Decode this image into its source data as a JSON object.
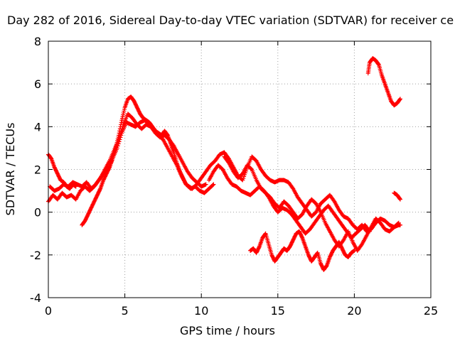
{
  "chart_data": {
    "type": "scatter",
    "title": "Day 282 of 2016, Sidereal Day-to-day VTEC variation (SDTVAR) for receiver ce",
    "xlabel": "GPS time / hours",
    "ylabel": "SDTVAR / TECUs",
    "xlim": [
      0,
      25
    ],
    "ylim": [
      -4,
      8
    ],
    "xticks": [
      "0",
      "5",
      "10",
      "15",
      "20",
      "25"
    ],
    "yticks": [
      "-4",
      "-2",
      "0",
      "2",
      "4",
      "6",
      "8"
    ],
    "grid": true,
    "legend": "none",
    "marker": "+",
    "color": "#ff0000",
    "series": [
      {
        "x": [
          0.0,
          0.2,
          0.4,
          0.6,
          0.8,
          1.0,
          1.2,
          1.4,
          1.6,
          1.8
        ],
        "y": [
          2.7,
          2.5,
          2.1,
          1.8,
          1.5,
          1.4,
          1.2,
          1.1,
          1.3,
          1.2
        ]
      },
      {
        "x": [
          0.0,
          0.3,
          0.6,
          0.9,
          1.2,
          1.5,
          1.8,
          2.1,
          2.4,
          2.7,
          3.0,
          3.3,
          3.6,
          3.9,
          4.2,
          4.5,
          4.8,
          5.1,
          5.4,
          5.7,
          6.0,
          6.3,
          6.6,
          6.9,
          7.2,
          7.5,
          7.8,
          8.1,
          8.4,
          8.7,
          9.0,
          9.3,
          9.6,
          9.9,
          10.2,
          10.5,
          10.8
        ],
        "y": [
          0.5,
          0.8,
          0.6,
          0.9,
          0.7,
          0.8,
          0.6,
          1.0,
          1.2,
          1.0,
          1.2,
          1.5,
          1.8,
          2.0,
          2.5,
          3.0,
          3.7,
          4.2,
          4.1,
          4.0,
          4.2,
          4.3,
          4.1,
          3.9,
          3.6,
          3.4,
          3.0,
          2.6,
          2.2,
          1.7,
          1.3,
          1.1,
          1.2,
          1.0,
          0.9,
          1.1,
          1.3
        ]
      },
      {
        "x": [
          0.1,
          0.4,
          0.7,
          1.0,
          1.3,
          1.6,
          1.9,
          2.2,
          2.5,
          2.8,
          3.1,
          3.4,
          3.7,
          4.0,
          4.3,
          4.6,
          4.9,
          5.2,
          5.5,
          5.8,
          6.1,
          6.4,
          6.7,
          7.0,
          7.3,
          7.6,
          7.9,
          8.2,
          8.5,
          8.8,
          9.1,
          9.4,
          9.7,
          10.0,
          10.3
        ],
        "y": [
          1.2,
          1.0,
          1.1,
          1.3,
          1.2,
          1.4,
          1.3,
          1.2,
          1.4,
          1.1,
          1.3,
          1.6,
          2.0,
          2.4,
          2.9,
          3.4,
          4.1,
          4.6,
          4.4,
          4.1,
          3.9,
          4.1,
          4.0,
          3.7,
          3.5,
          3.6,
          3.4,
          3.1,
          2.7,
          2.3,
          1.9,
          1.6,
          1.4,
          1.2,
          1.3
        ]
      },
      {
        "x": [
          2.2,
          2.4,
          2.6,
          2.8,
          3.0,
          3.2,
          3.4,
          3.6,
          3.8,
          4.0,
          4.2,
          4.4,
          4.6,
          4.8,
          5.0,
          5.2,
          5.4,
          5.6,
          5.8,
          6.0,
          6.2,
          6.4,
          6.6,
          6.8,
          7.0,
          7.2,
          7.4,
          7.6,
          7.8,
          8.0,
          8.2,
          8.4,
          8.6,
          8.8,
          9.0,
          9.2,
          9.4
        ],
        "y": [
          -0.6,
          -0.4,
          -0.1,
          0.2,
          0.5,
          0.8,
          1.1,
          1.5,
          1.8,
          2.1,
          2.5,
          3.0,
          3.6,
          4.3,
          4.9,
          5.3,
          5.4,
          5.2,
          4.9,
          4.6,
          4.4,
          4.3,
          4.2,
          4.0,
          3.8,
          3.7,
          3.6,
          3.8,
          3.6,
          3.2,
          2.8,
          2.3,
          1.9,
          1.6,
          1.3,
          1.2,
          1.1
        ]
      },
      {
        "x": [
          9.4,
          9.7,
          10.0,
          10.3,
          10.6,
          10.9,
          11.2,
          11.5,
          11.8,
          12.1,
          12.4,
          12.7,
          13.0,
          13.3,
          13.6,
          13.9,
          14.2,
          14.5,
          14.8,
          15.1,
          15.4,
          15.7,
          16.0,
          16.3,
          16.6,
          16.9,
          17.2,
          17.5,
          17.8,
          18.1,
          18.4,
          18.7,
          19.0,
          19.3,
          19.6,
          19.9,
          20.2,
          20.5,
          20.8,
          21.1,
          21.4,
          21.7,
          22.0,
          22.3,
          22.6,
          22.9,
          23.0
        ],
        "y": [
          1.1,
          1.3,
          1.6,
          1.9,
          2.2,
          2.4,
          2.7,
          2.8,
          2.5,
          2.1,
          1.7,
          1.5,
          2.1,
          2.6,
          2.4,
          2.0,
          1.7,
          1.5,
          1.4,
          1.5,
          1.5,
          1.4,
          1.1,
          0.7,
          0.4,
          0.1,
          -0.2,
          0.0,
          0.4,
          0.6,
          0.8,
          0.5,
          0.1,
          -0.2,
          -0.3,
          -0.6,
          -0.8,
          -0.6,
          -0.9,
          -0.8,
          -0.5,
          -0.3,
          -0.4,
          -0.6,
          -0.7,
          -0.6,
          -0.6
        ]
      },
      {
        "x": [
          10.5,
          10.8,
          11.1,
          11.4,
          11.7,
          12.0,
          12.3,
          12.6,
          12.9,
          13.2,
          13.5,
          13.8,
          14.1,
          14.4,
          14.7,
          15.0,
          15.3,
          15.6,
          15.9,
          16.2,
          16.5,
          16.8,
          17.1,
          17.4,
          17.7,
          18.0,
          18.3,
          18.6,
          18.9,
          19.2,
          19.5,
          19.8,
          20.1,
          20.4,
          20.7,
          21.0
        ],
        "y": [
          1.5,
          1.9,
          2.2,
          2.0,
          1.6,
          1.3,
          1.2,
          1.0,
          0.9,
          0.8,
          1.0,
          1.2,
          1.0,
          0.7,
          0.3,
          0.0,
          0.2,
          0.1,
          -0.1,
          -0.4,
          -0.7,
          -1.0,
          -0.8,
          -0.5,
          -0.2,
          0.1,
          0.3,
          0.0,
          -0.3,
          -0.6,
          -0.9,
          -1.2,
          -1.0,
          -0.8,
          -0.6,
          -0.9
        ]
      },
      {
        "x": [
          11.5,
          11.8,
          12.1,
          12.4,
          12.7,
          13.0,
          13.3,
          13.6,
          13.9,
          14.2,
          14.5,
          14.8,
          15.1,
          15.4,
          15.7,
          16.0,
          16.3,
          16.6,
          16.9,
          17.2,
          17.5,
          17.8,
          18.1,
          18.4,
          18.7,
          19.0,
          19.3,
          19.6,
          19.9,
          20.2,
          20.5,
          20.8,
          21.1,
          21.4,
          21.7,
          22.0,
          22.3,
          22.6,
          22.9
        ],
        "y": [
          2.6,
          2.3,
          1.9,
          1.6,
          1.8,
          2.2,
          2.0,
          1.5,
          1.1,
          0.9,
          0.7,
          0.4,
          0.2,
          0.5,
          0.3,
          0.0,
          -0.3,
          -0.1,
          0.3,
          0.6,
          0.4,
          0.0,
          -0.5,
          -0.9,
          -1.3,
          -1.6,
          -1.3,
          -0.9,
          -1.4,
          -1.8,
          -1.5,
          -1.1,
          -0.7,
          -0.3,
          -0.5,
          -0.8,
          -0.9,
          -0.7,
          -0.5
        ]
      },
      {
        "x": [
          13.2,
          13.4,
          13.6,
          13.8,
          14.0,
          14.2,
          14.4,
          14.6,
          14.8,
          15.0,
          15.2,
          15.4,
          15.6,
          15.8,
          16.0,
          16.2,
          16.4,
          16.6,
          16.8,
          17.0,
          17.2,
          17.4,
          17.6,
          17.8,
          18.0,
          18.2,
          18.4,
          18.6,
          18.8,
          19.0,
          19.2,
          19.4,
          19.6,
          19.8,
          20.0
        ],
        "y": [
          -1.8,
          -1.7,
          -1.9,
          -1.6,
          -1.2,
          -1.0,
          -1.5,
          -2.0,
          -2.3,
          -2.1,
          -1.9,
          -1.7,
          -1.8,
          -1.6,
          -1.3,
          -1.0,
          -0.9,
          -1.2,
          -1.6,
          -2.0,
          -2.3,
          -2.1,
          -1.9,
          -2.4,
          -2.7,
          -2.5,
          -2.1,
          -1.8,
          -1.6,
          -1.4,
          -1.7,
          -2.0,
          -2.1,
          -1.9,
          -1.8
        ]
      },
      {
        "x": [
          20.9,
          21.0,
          21.2,
          21.4,
          21.6,
          21.8,
          22.0,
          22.2,
          22.4,
          22.6,
          22.8,
          23.0
        ],
        "y": [
          6.5,
          7.0,
          7.2,
          7.1,
          6.9,
          6.4,
          6.0,
          5.6,
          5.2,
          5.0,
          5.1,
          5.3
        ]
      },
      {
        "x": [
          22.6,
          22.8,
          23.0
        ],
        "y": [
          0.9,
          0.8,
          0.6
        ]
      }
    ]
  }
}
